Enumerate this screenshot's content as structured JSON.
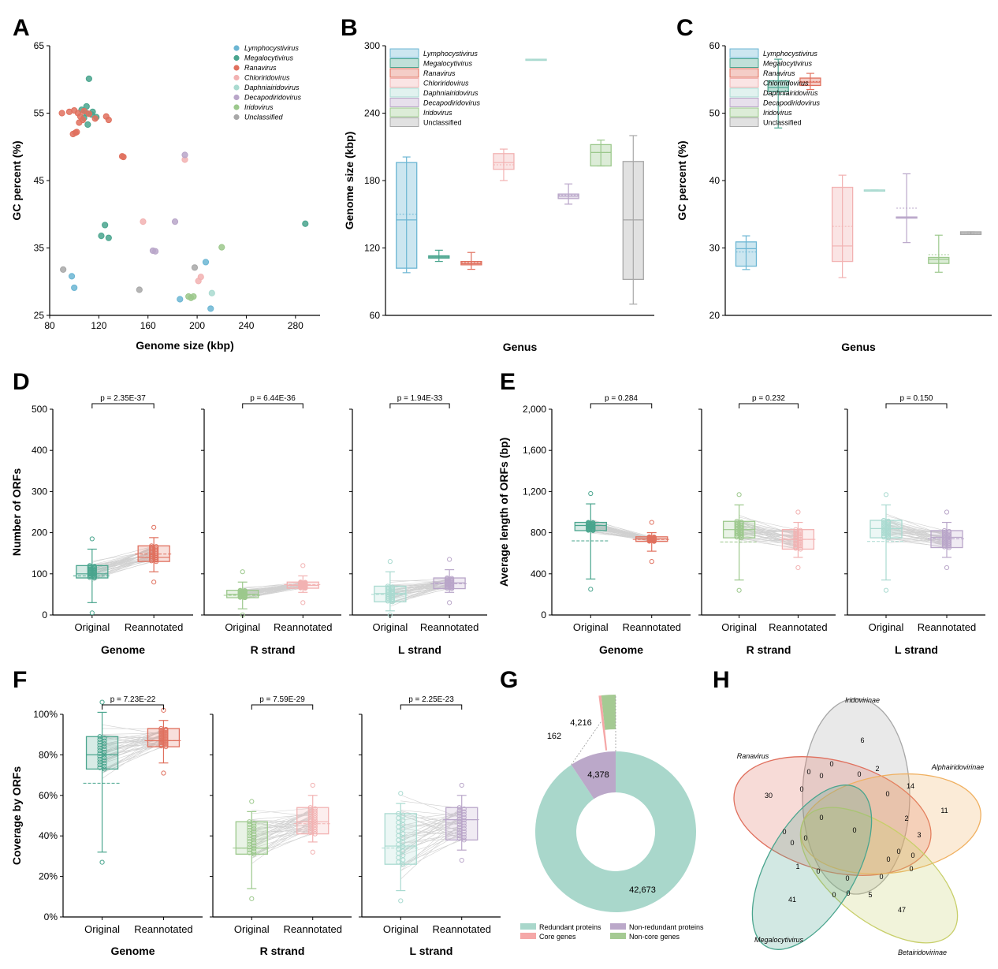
{
  "colors": {
    "Lymphocystivirus": "#6cb6d3",
    "Megalocytivirus": "#4aa58e",
    "Ranavirus": "#e0705e",
    "Chloriridovirus": "#f2b2b2",
    "Daphniairidovirus": "#a9dad0",
    "Decapodiridovirus": "#b9a6c9",
    "Iridovirus": "#9cc88c",
    "Unclassified": "#a8a8a8",
    "gene_redundant": "#a9d7cb",
    "gene_core": "#f5a8a8",
    "gene_nonredundant": "#bba8c9",
    "gene_noncore": "#a5ca93"
  },
  "panels": {
    "A": {
      "letter": "A"
    },
    "B": {
      "letter": "B"
    },
    "C": {
      "letter": "C"
    },
    "D": {
      "letter": "D"
    },
    "E": {
      "letter": "E"
    },
    "F": {
      "letter": "F"
    },
    "G": {
      "letter": "G"
    },
    "H": {
      "letter": "H"
    }
  },
  "chart_data": [
    {
      "panel": "A",
      "type": "scatter",
      "xlabel": "Genome size (kbp)",
      "ylabel": "GC percent (%)",
      "xlim": [
        80,
        300
      ],
      "ylim": [
        25,
        65
      ],
      "xticks": [
        "80",
        "120",
        "160",
        "200",
        "240",
        "280"
      ],
      "yticks": [
        "25",
        "35",
        "45",
        "55",
        "65"
      ],
      "legend": [
        "Lymphocystivirus",
        "Megalocytivirus",
        "Ranavirus",
        "Chloriridovirus",
        "Daphniairidovirus",
        "Decapodiridovirus",
        "Iridovirus",
        "Unclassified"
      ],
      "legend_position": "top-right",
      "series": [
        {
          "name": "Lymphocystivirus",
          "points": [
            [
              98,
              30.8
            ],
            [
              100,
              29.1
            ],
            [
              186,
              27.4
            ],
            [
              207,
              32.9
            ],
            [
              211,
              26.0
            ]
          ]
        },
        {
          "name": "Megalocytivirus",
          "points": [
            [
              111,
              53.3
            ],
            [
              112,
              60.1
            ],
            [
              110,
              56.0
            ],
            [
              115,
              55.2
            ],
            [
              118,
              54.4
            ],
            [
              108,
              54.3
            ],
            [
              106,
              55.5
            ],
            [
              114,
              54.8
            ],
            [
              110,
              55.0
            ],
            [
              122,
              36.8
            ],
            [
              125,
              38.4
            ],
            [
              128,
              36.5
            ],
            [
              288,
              38.6
            ]
          ]
        },
        {
          "name": "Ranavirus",
          "points": [
            [
              90,
              55.0
            ],
            [
              96,
              55.2
            ],
            [
              100,
              55.4
            ],
            [
              103,
              55.0
            ],
            [
              105,
              54.5
            ],
            [
              107,
              54.0
            ],
            [
              104,
              53.6
            ],
            [
              108,
              55.3
            ],
            [
              112,
              54.9
            ],
            [
              117,
              54.2
            ],
            [
              126,
              54.5
            ],
            [
              128,
              54.0
            ],
            [
              139,
              48.6
            ],
            [
              140,
              48.5
            ],
            [
              101,
              52.1
            ],
            [
              99,
              51.9
            ],
            [
              102,
              52.2
            ]
          ]
        },
        {
          "name": "Chloriridovirus",
          "points": [
            [
              156,
              38.9
            ],
            [
              190,
              48.1
            ],
            [
              203,
              30.7
            ],
            [
              201,
              30.1
            ]
          ]
        },
        {
          "name": "Daphniairidovirus",
          "points": [
            [
              212,
              28.3
            ]
          ]
        },
        {
          "name": "Decapodiridovirus",
          "points": [
            [
              164,
              34.6
            ],
            [
              166,
              34.5
            ],
            [
              190,
              48.8
            ],
            [
              182,
              38.9
            ]
          ]
        },
        {
          "name": "Iridovirus",
          "points": [
            [
              193,
              27.8
            ],
            [
              197,
              27.8
            ],
            [
              195,
              27.6
            ],
            [
              220,
              35.1
            ]
          ]
        },
        {
          "name": "Unclassified",
          "points": [
            [
              91,
              31.8
            ],
            [
              153,
              28.8
            ],
            [
              198,
              32.1
            ]
          ]
        }
      ]
    },
    {
      "panel": "B",
      "type": "box",
      "xlabel": "Genus",
      "ylabel": "Genome size (kbp)",
      "ylim": [
        60,
        300
      ],
      "yticks": [
        "60",
        "120",
        "180",
        "240",
        "300"
      ],
      "legend": [
        "Lymphocystivirus",
        "Megalocytivirus",
        "Ranavirus",
        "Chloriridovirus",
        "Daphniairidovirus",
        "Decapodiridovirus",
        "Iridovirus",
        "Unclassified"
      ],
      "boxes": [
        {
          "name": "Lymphocystivirus",
          "min": 98,
          "q1": 102,
          "median": 145,
          "q3": 196,
          "max": 201,
          "mean": 150
        },
        {
          "name": "Megalocytivirus",
          "min": 108,
          "q1": 111,
          "median": 112,
          "q3": 113,
          "max": 118,
          "mean": 112
        },
        {
          "name": "Ranavirus",
          "min": 101,
          "q1": 105,
          "median": 106,
          "q3": 108,
          "max": 116,
          "mean": 107
        },
        {
          "name": "Chloriridovirus",
          "min": 180,
          "q1": 190,
          "median": 196,
          "q3": 204,
          "max": 208,
          "mean": 194
        },
        {
          "name": "Daphniairidovirus",
          "min": 288,
          "q1": 288,
          "median": 288,
          "q3": 288,
          "max": 288,
          "mean": 288
        },
        {
          "name": "Decapodiridovirus",
          "min": 159,
          "q1": 164,
          "median": 166,
          "q3": 168,
          "max": 177,
          "mean": 167
        },
        {
          "name": "Iridovirus",
          "min": 193,
          "q1": 193,
          "median": 205,
          "q3": 212,
          "max": 216,
          "mean": 205
        },
        {
          "name": "Unclassified",
          "min": 70,
          "q1": 92,
          "median": 145,
          "q3": 197,
          "max": 220,
          "mean": 145
        }
      ]
    },
    {
      "panel": "C",
      "type": "box",
      "xlabel": "Genus",
      "ylabel": "GC percent (%)",
      "ylim": [
        20,
        60
      ],
      "yticks": [
        "20",
        "30",
        "40",
        "50",
        "60"
      ],
      "legend": [
        "Lymphocystivirus",
        "Megalocytivirus",
        "Ranavirus",
        "Chloriridovirus",
        "Daphniairidovirus",
        "Decapodiridovirus",
        "Iridovirus",
        "Unclassified"
      ],
      "boxes": [
        {
          "name": "Lymphocystivirus",
          "min": 26.8,
          "q1": 27.3,
          "median": 29.9,
          "q3": 30.9,
          "max": 31.8,
          "mean": 29.4
        },
        {
          "name": "Megalocytivirus",
          "min": 47.8,
          "q1": 53.2,
          "median": 53.8,
          "q3": 54.8,
          "max": 58.0,
          "mean": 52.8
        },
        {
          "name": "Ranavirus",
          "min": 53.5,
          "q1": 54.1,
          "median": 54.6,
          "q3": 55.2,
          "max": 55.9,
          "mean": 54.7
        },
        {
          "name": "Chloriridovirus",
          "min": 25.6,
          "q1": 28.0,
          "median": 30.3,
          "q3": 39.0,
          "max": 40.8,
          "mean": 33.2
        },
        {
          "name": "Daphniairidovirus",
          "min": 38.6,
          "q1": 38.6,
          "median": 38.6,
          "q3": 38.6,
          "max": 38.6,
          "mean": 38.6
        },
        {
          "name": "Decapodiridovirus",
          "min": 30.8,
          "q1": 34.6,
          "median": 34.6,
          "q3": 34.6,
          "max": 41.0,
          "mean": 35.9
        },
        {
          "name": "Iridovirus",
          "min": 26.4,
          "q1": 27.7,
          "median": 28.3,
          "q3": 28.6,
          "max": 31.9,
          "mean": 29.0
        },
        {
          "name": "Unclassified",
          "min": 32.0,
          "q1": 32.0,
          "median": 32.2,
          "q3": 32.4,
          "max": 32.4,
          "mean": 32.2
        }
      ]
    },
    {
      "panel": "D",
      "type": "paired-box",
      "ylabel": "Number of ORFs",
      "ylim": [
        0,
        500
      ],
      "yticks": [
        "0",
        "100",
        "200",
        "300",
        "400",
        "500"
      ],
      "groups": [
        {
          "title": "Genome",
          "pvalue": "p = 2.35E-37",
          "original": {
            "label": "Original",
            "min": 30,
            "q1": 90,
            "median": 100,
            "q3": 120,
            "max": 160,
            "mean": 95,
            "color": "Megalocytivirus"
          },
          "reannotated": {
            "label": "Reannotated",
            "min": 105,
            "q1": 130,
            "median": 140,
            "q3": 168,
            "max": 188,
            "mean": 148,
            "color": "Ranavirus"
          }
        },
        {
          "title": "R strand",
          "pvalue": "p = 6.44E-36",
          "original": {
            "label": "Original",
            "min": 15,
            "q1": 42,
            "median": 50,
            "q3": 60,
            "max": 80,
            "mean": 48,
            "color": "Iridovirus"
          },
          "reannotated": {
            "label": "Reannotated",
            "min": 55,
            "q1": 65,
            "median": 72,
            "q3": 80,
            "max": 95,
            "mean": 74,
            "color": "Chloriridovirus"
          }
        },
        {
          "title": "L strand",
          "pvalue": "p = 1.94E-33",
          "original": {
            "label": "Original",
            "min": 10,
            "q1": 32,
            "median": 52,
            "q3": 70,
            "max": 105,
            "mean": 50,
            "color": "Daphniairidovirus"
          },
          "reannotated": {
            "label": "Reannotated",
            "min": 55,
            "q1": 64,
            "median": 78,
            "q3": 90,
            "max": 110,
            "mean": 76,
            "color": "Decapodiridovirus"
          }
        }
      ]
    },
    {
      "panel": "E",
      "type": "paired-box",
      "ylabel": "Average length of ORFs (bp)",
      "ylim": [
        0,
        2000
      ],
      "yticks": [
        "0",
        "400",
        "800",
        "1,200",
        "1,600",
        "2,000"
      ],
      "groups": [
        {
          "title": "Genome",
          "pvalue": "p = 0.284",
          "original": {
            "label": "Original",
            "min": 350,
            "q1": 820,
            "median": 870,
            "q3": 900,
            "max": 1080,
            "mean": 720,
            "color": "Megalocytivirus"
          },
          "reannotated": {
            "label": "Reannotated",
            "min": 620,
            "q1": 715,
            "median": 740,
            "q3": 760,
            "max": 800,
            "mean": 735,
            "color": "Ranavirus"
          }
        },
        {
          "title": "R strand",
          "pvalue": "p = 0.232",
          "original": {
            "label": "Original",
            "min": 340,
            "q1": 750,
            "median": 830,
            "q3": 910,
            "max": 1070,
            "mean": 710,
            "color": "Iridovirus"
          },
          "reannotated": {
            "label": "Reannotated",
            "min": 560,
            "q1": 640,
            "median": 735,
            "q3": 830,
            "max": 900,
            "mean": 735,
            "color": "Chloriridovirus"
          }
        },
        {
          "title": "L strand",
          "pvalue": "p = 0.150",
          "original": {
            "label": "Original",
            "min": 340,
            "q1": 750,
            "median": 840,
            "q3": 920,
            "max": 1070,
            "mean": 715,
            "color": "Daphniairidovirus"
          },
          "reannotated": {
            "label": "Reannotated",
            "min": 560,
            "q1": 655,
            "median": 755,
            "q3": 820,
            "max": 900,
            "mean": 740,
            "color": "Decapodiridovirus"
          }
        }
      ]
    },
    {
      "panel": "F",
      "type": "paired-box",
      "ylabel": "Coverage by ORFs",
      "ylim": [
        0,
        100
      ],
      "yticks": [
        "0%",
        "20%",
        "40%",
        "60%",
        "80%",
        "100%"
      ],
      "groups": [
        {
          "title": "Genome",
          "pvalue": "p = 7.23E-22",
          "original": {
            "label": "Original",
            "min": 32,
            "q1": 73,
            "median": 80,
            "q3": 89,
            "max": 101,
            "mean": 66,
            "color": "Megalocytivirus"
          },
          "reannotated": {
            "label": "Reannotated",
            "min": 76,
            "q1": 84,
            "median": 87,
            "q3": 93,
            "max": 97,
            "mean": 87,
            "color": "Ranavirus"
          }
        },
        {
          "title": "R strand",
          "pvalue": "p = 7.59E-29",
          "original": {
            "label": "Original",
            "min": 14,
            "q1": 31,
            "median": 34,
            "q3": 47,
            "max": 52,
            "mean": 34,
            "color": "Iridovirus"
          },
          "reannotated": {
            "label": "Reannotated",
            "min": 37,
            "q1": 41,
            "median": 47,
            "q3": 54,
            "max": 60,
            "mean": 46,
            "color": "Chloriridovirus"
          }
        },
        {
          "title": "L strand",
          "pvalue": "p = 2.25E-23",
          "original": {
            "label": "Original",
            "min": 13,
            "q1": 26,
            "median": 35,
            "q3": 51,
            "max": 56,
            "mean": 34,
            "color": "Daphniairidovirus"
          },
          "reannotated": {
            "label": "Reannotated",
            "min": 33,
            "q1": 38,
            "median": 48,
            "q3": 54,
            "max": 60,
            "mean": 48,
            "color": "Decapodiridovirus"
          }
        }
      ]
    },
    {
      "panel": "G",
      "type": "pie",
      "segments": [
        {
          "name": "Redundant proteins",
          "value": 42673,
          "label": "42,673",
          "color": "gene_redundant"
        },
        {
          "name": "Non-redundant proteins",
          "value": 4378,
          "label": "4,378",
          "color": "gene_nonredundant"
        },
        {
          "name": "Core genes",
          "value": 162,
          "label": "162",
          "color": "gene_core"
        },
        {
          "name": "Non-core genes",
          "value": 4216,
          "label": "4,216",
          "color": "gene_noncore"
        }
      ],
      "legend": [
        "Redundant proteins",
        "Non-redundant proteins",
        "Core genes",
        "Non-core genes"
      ]
    },
    {
      "panel": "H",
      "type": "venn",
      "sets": [
        "Iridovirinae",
        "Ranavirus",
        "Alphairidovirinae",
        "Betairidovirinae",
        "Megalocytivirus"
      ],
      "numbers": [
        "6",
        "30",
        "11",
        "47",
        "41",
        "0",
        "2",
        "14",
        "0",
        "0",
        "0",
        "0",
        "0",
        "2",
        "0",
        "3",
        "0",
        "0",
        "0",
        "0",
        "0",
        "0",
        "0",
        "0",
        "1",
        "0",
        "0",
        "0",
        "5",
        "0",
        "0"
      ]
    }
  ]
}
